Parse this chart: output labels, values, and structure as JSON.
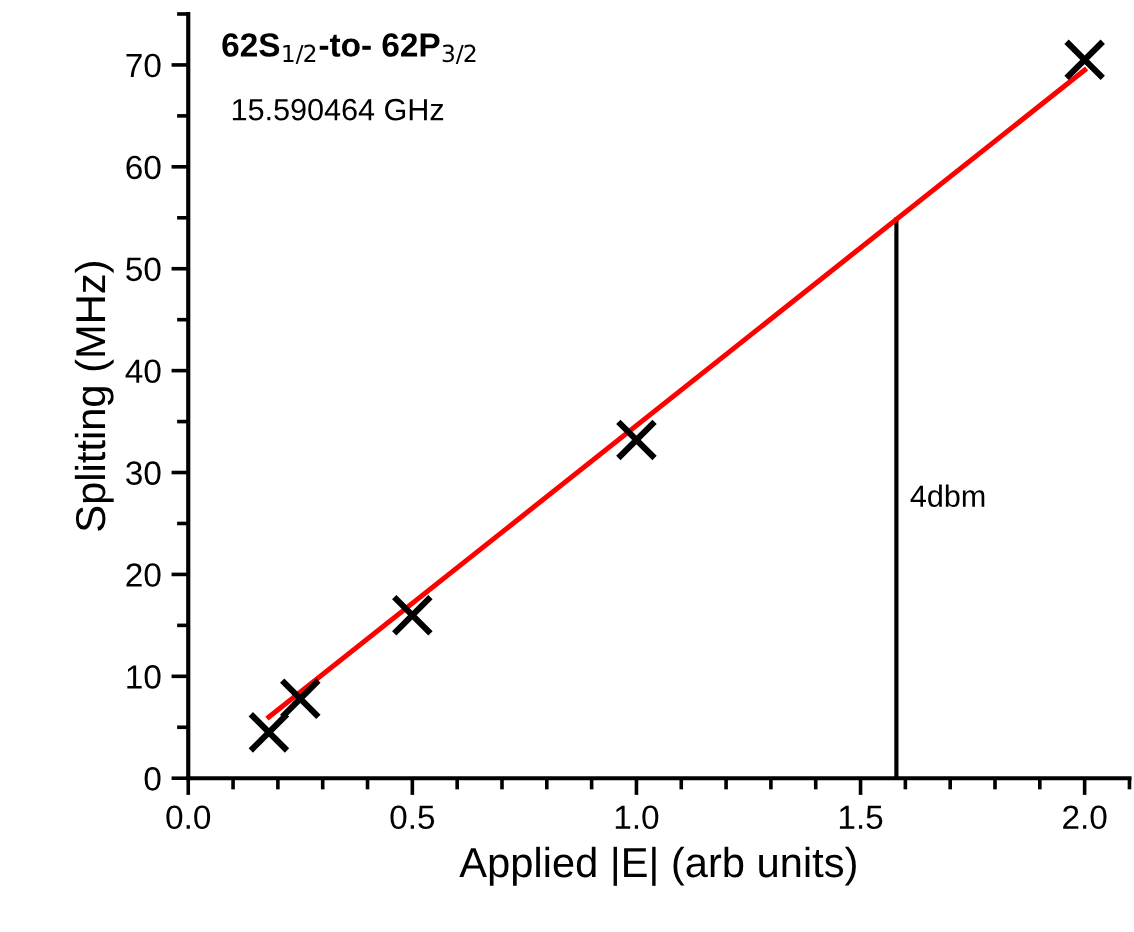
{
  "chart_data": {
    "type": "scatter",
    "title": "62S$_{1/2}$-to- 62P$_{3/2}$",
    "subtitle": "15.590464 GHz",
    "xlabel": "Applied |E| (arb units)",
    "ylabel": "Splitting (MHz)",
    "series": [
      {
        "color": "#000000",
        "marker": "cross",
        "x": [
          0.18,
          0.25,
          0.5,
          1.0,
          2.0
        ],
        "values": [
          4.5,
          7.8,
          16,
          33.2,
          70.5
        ]
      },
      {
        "type": "line",
        "color": "#ff0000",
        "marker": "none",
        "line_style": "solid",
        "x": [
          0.18,
          2.0
        ],
        "values": [
          6,
          69.5
        ]
      }
    ],
    "ref_lines": [
      {
        "axis": "x",
        "value": 1.58,
        "label": "4dbm",
        "color": "#000000",
        "line_style": "solid"
      }
    ],
    "xlim": [
      0,
      2.1
    ],
    "xticks": [
      {
        "value": 0,
        "label": "0.0"
      },
      0.5,
      {
        "value": 1,
        "label": "1.0"
      },
      1.5,
      {
        "value": 2,
        "label": "2.0"
      }
    ],
    "ylim": [
      0,
      75
    ],
    "yticks": [
      0,
      10,
      20,
      30,
      40,
      50,
      60,
      70
    ],
    "grid": false,
    "legend": false
  }
}
